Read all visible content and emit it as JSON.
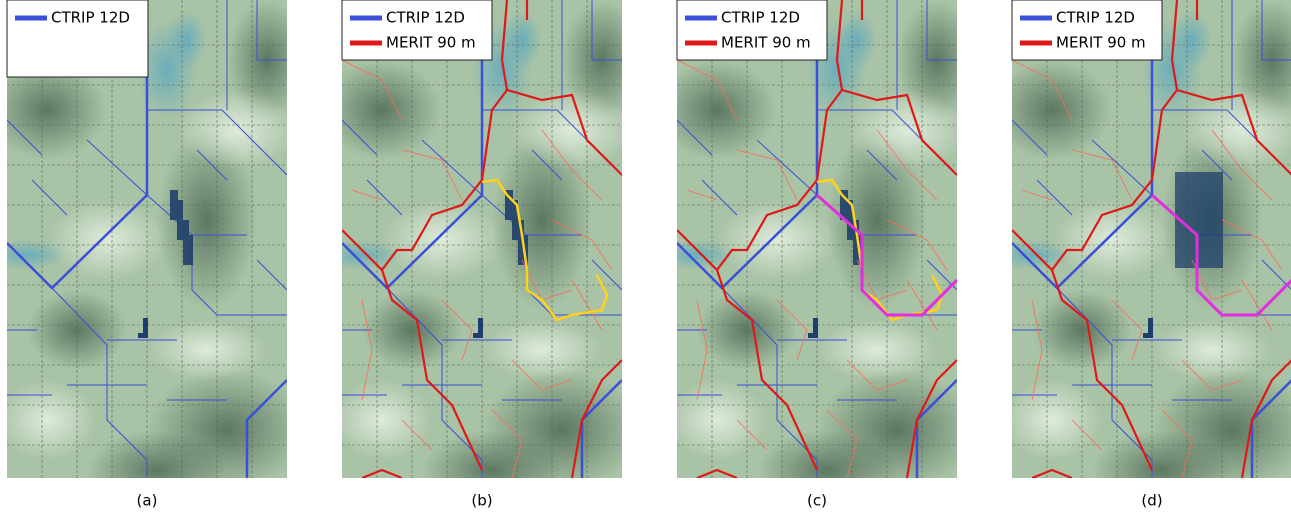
{
  "panels": [
    {
      "legend": [
        "CTRIP 12D"
      ],
      "caption": "(a)"
    },
    {
      "legend": [
        "CTRIP 12D",
        "MERIT 90 m"
      ],
      "caption": "(b)"
    },
    {
      "legend": [
        "CTRIP 12D",
        "MERIT 90 m"
      ],
      "caption": "(c)"
    },
    {
      "legend": [
        "CTRIP 12D",
        "MERIT 90 m"
      ],
      "caption": "(d)"
    }
  ]
}
